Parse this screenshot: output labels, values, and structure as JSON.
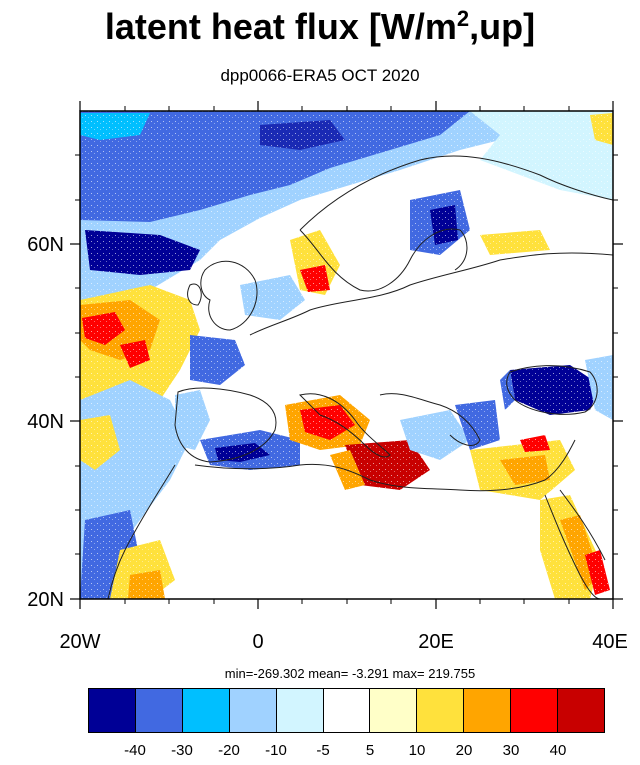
{
  "title": {
    "main": "latent heat flux [W/m",
    "sup": "2",
    "tail": ",up]"
  },
  "subtitle": "dpp0066-ERA5  OCT 2020",
  "axes": {
    "x_ticks": [
      "20W",
      "0",
      "20E",
      "40E"
    ],
    "y_ticks": [
      "20N",
      "40N",
      "60N"
    ]
  },
  "stats": "min=-269.302  mean=  -3.291  max= 219.755",
  "colorbar": {
    "colors": [
      "#000096",
      "#4169e1",
      "#00bfff",
      "#a0d2ff",
      "#d2f5ff",
      "#ffffff",
      "#ffffc8",
      "#ffe13c",
      "#ffa500",
      "#ff0000",
      "#c80000"
    ],
    "labels": [
      "-40",
      "-30",
      "-20",
      "-10",
      "-5",
      "5",
      "10",
      "20",
      "30",
      "40"
    ]
  },
  "map_colors": {
    "frame": "#000000",
    "coast": "#202020"
  }
}
